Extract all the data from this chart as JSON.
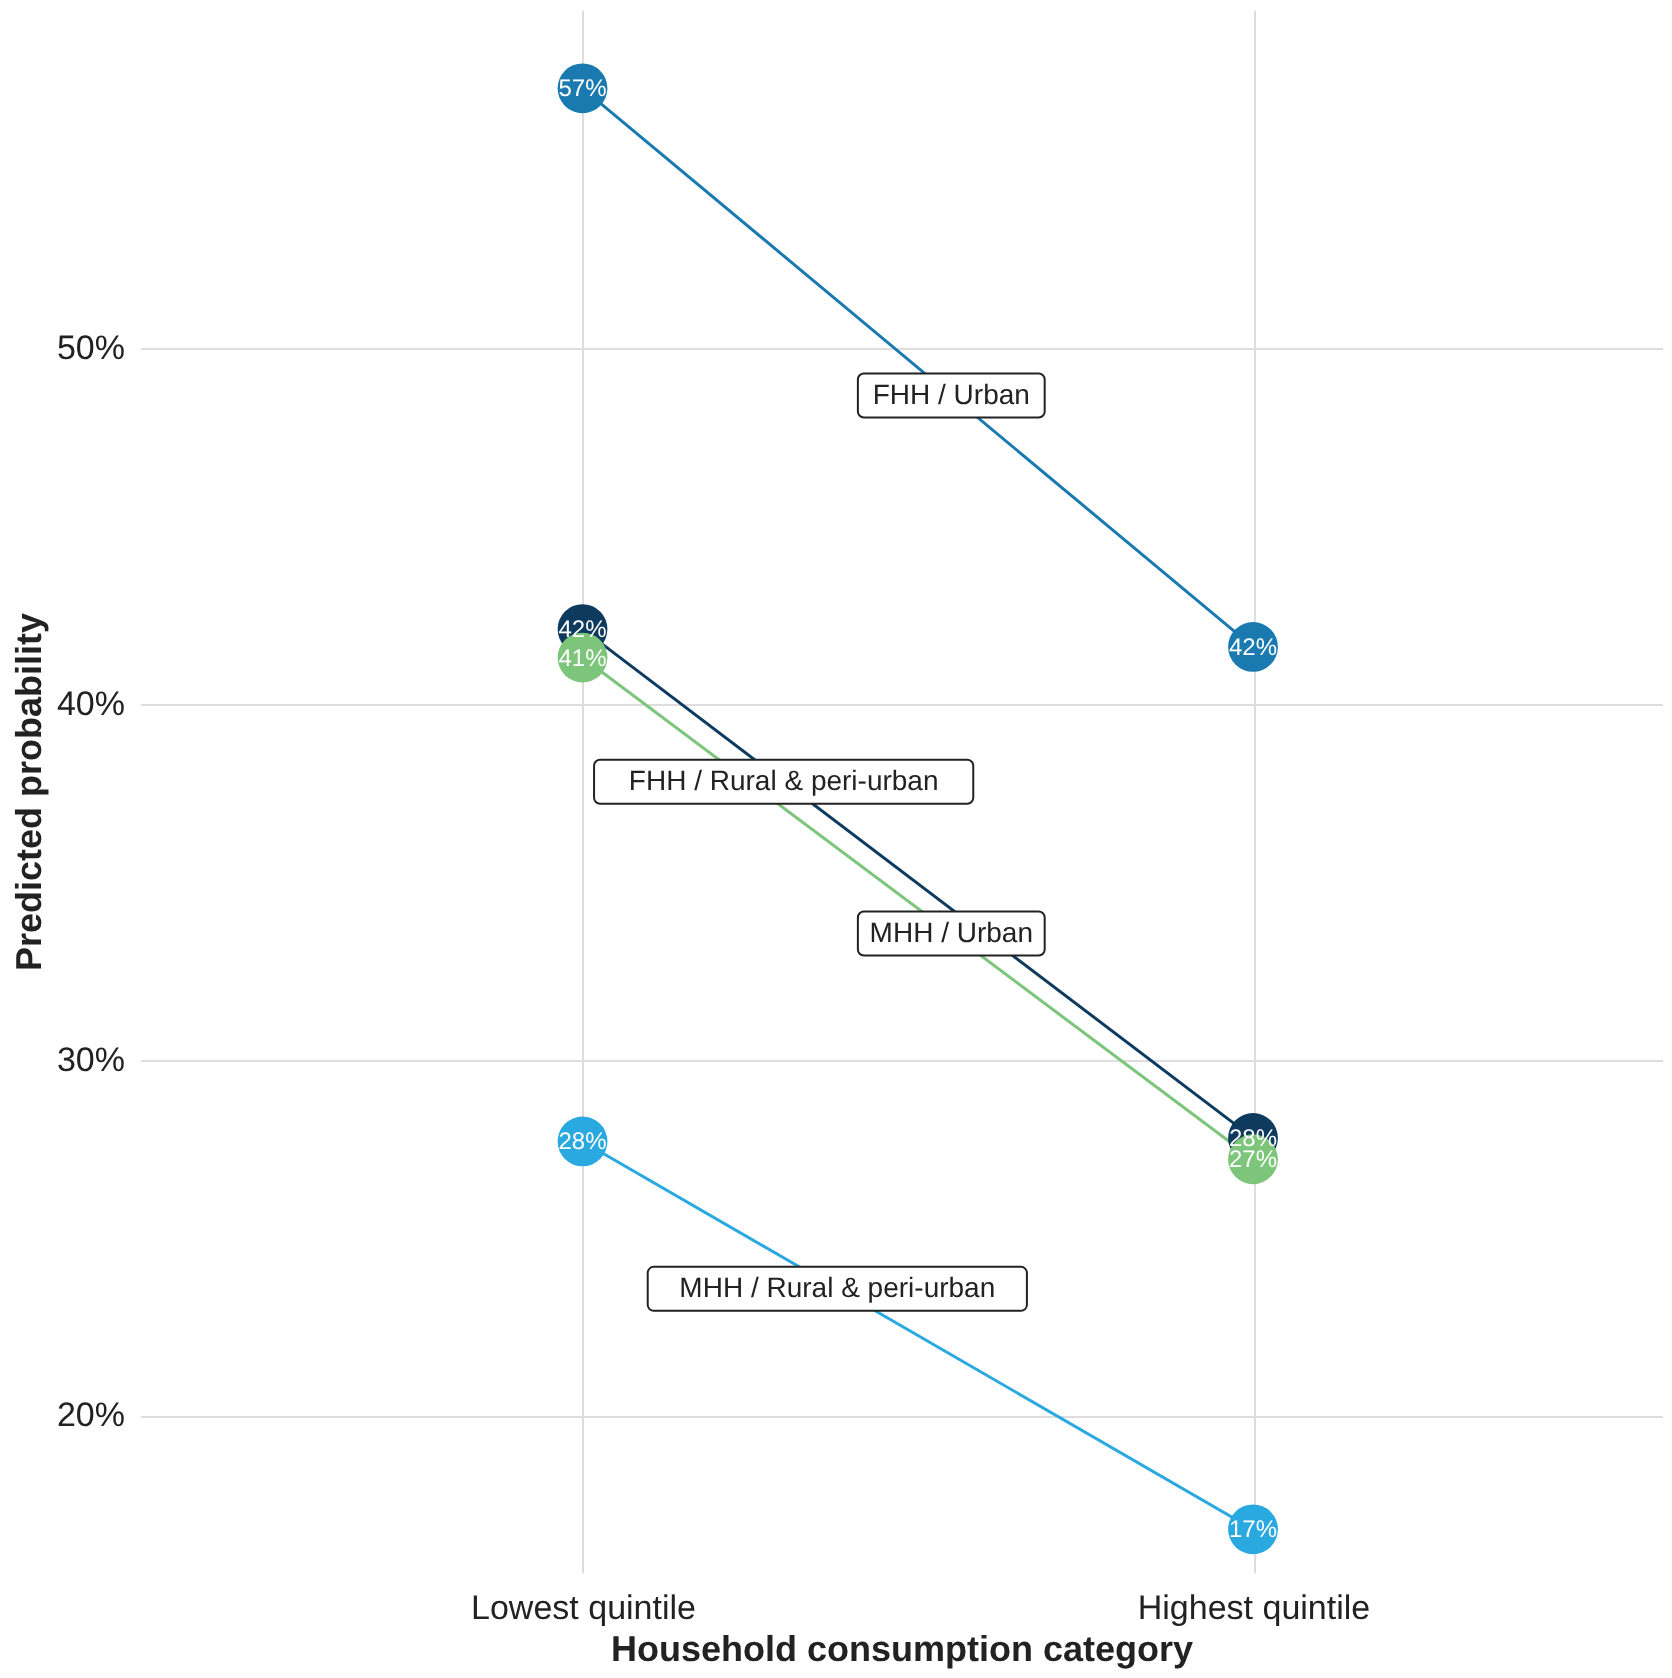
{
  "chart_data": {
    "type": "line",
    "xlabel": "Household consumption category",
    "ylabel": "Predicted probability",
    "categories": [
      "Lowest quintile",
      "Highest quintile"
    ],
    "series": [
      {
        "name": "FHH / Urban",
        "color": "#1a7ab0",
        "values": [
          57.3,
          41.6
        ],
        "value_labels": [
          "57%",
          "42%"
        ]
      },
      {
        "name": "FHH / Rural & peri-urban",
        "color": "#0e3a5e",
        "values": [
          42.1,
          27.8
        ],
        "value_labels": [
          "42%",
          "28%"
        ]
      },
      {
        "name": "MHH / Urban",
        "color": "#7cc57a",
        "values": [
          41.3,
          27.2
        ],
        "value_labels": [
          "41%",
          "27%"
        ]
      },
      {
        "name": "MHH / Rural & peri-urban",
        "color": "#2aa8e0",
        "values": [
          27.7,
          16.8
        ],
        "value_labels": [
          "28%",
          "17%"
        ]
      }
    ],
    "ylim": [
      15.6,
      59.5
    ],
    "yticks": [
      {
        "value": 20,
        "label": "20%"
      },
      {
        "value": 30,
        "label": "30%"
      },
      {
        "value": 40,
        "label": "40%"
      },
      {
        "value": 50,
        "label": "50%"
      }
    ],
    "grid": true,
    "marker": "circle",
    "line_style": "solid"
  }
}
